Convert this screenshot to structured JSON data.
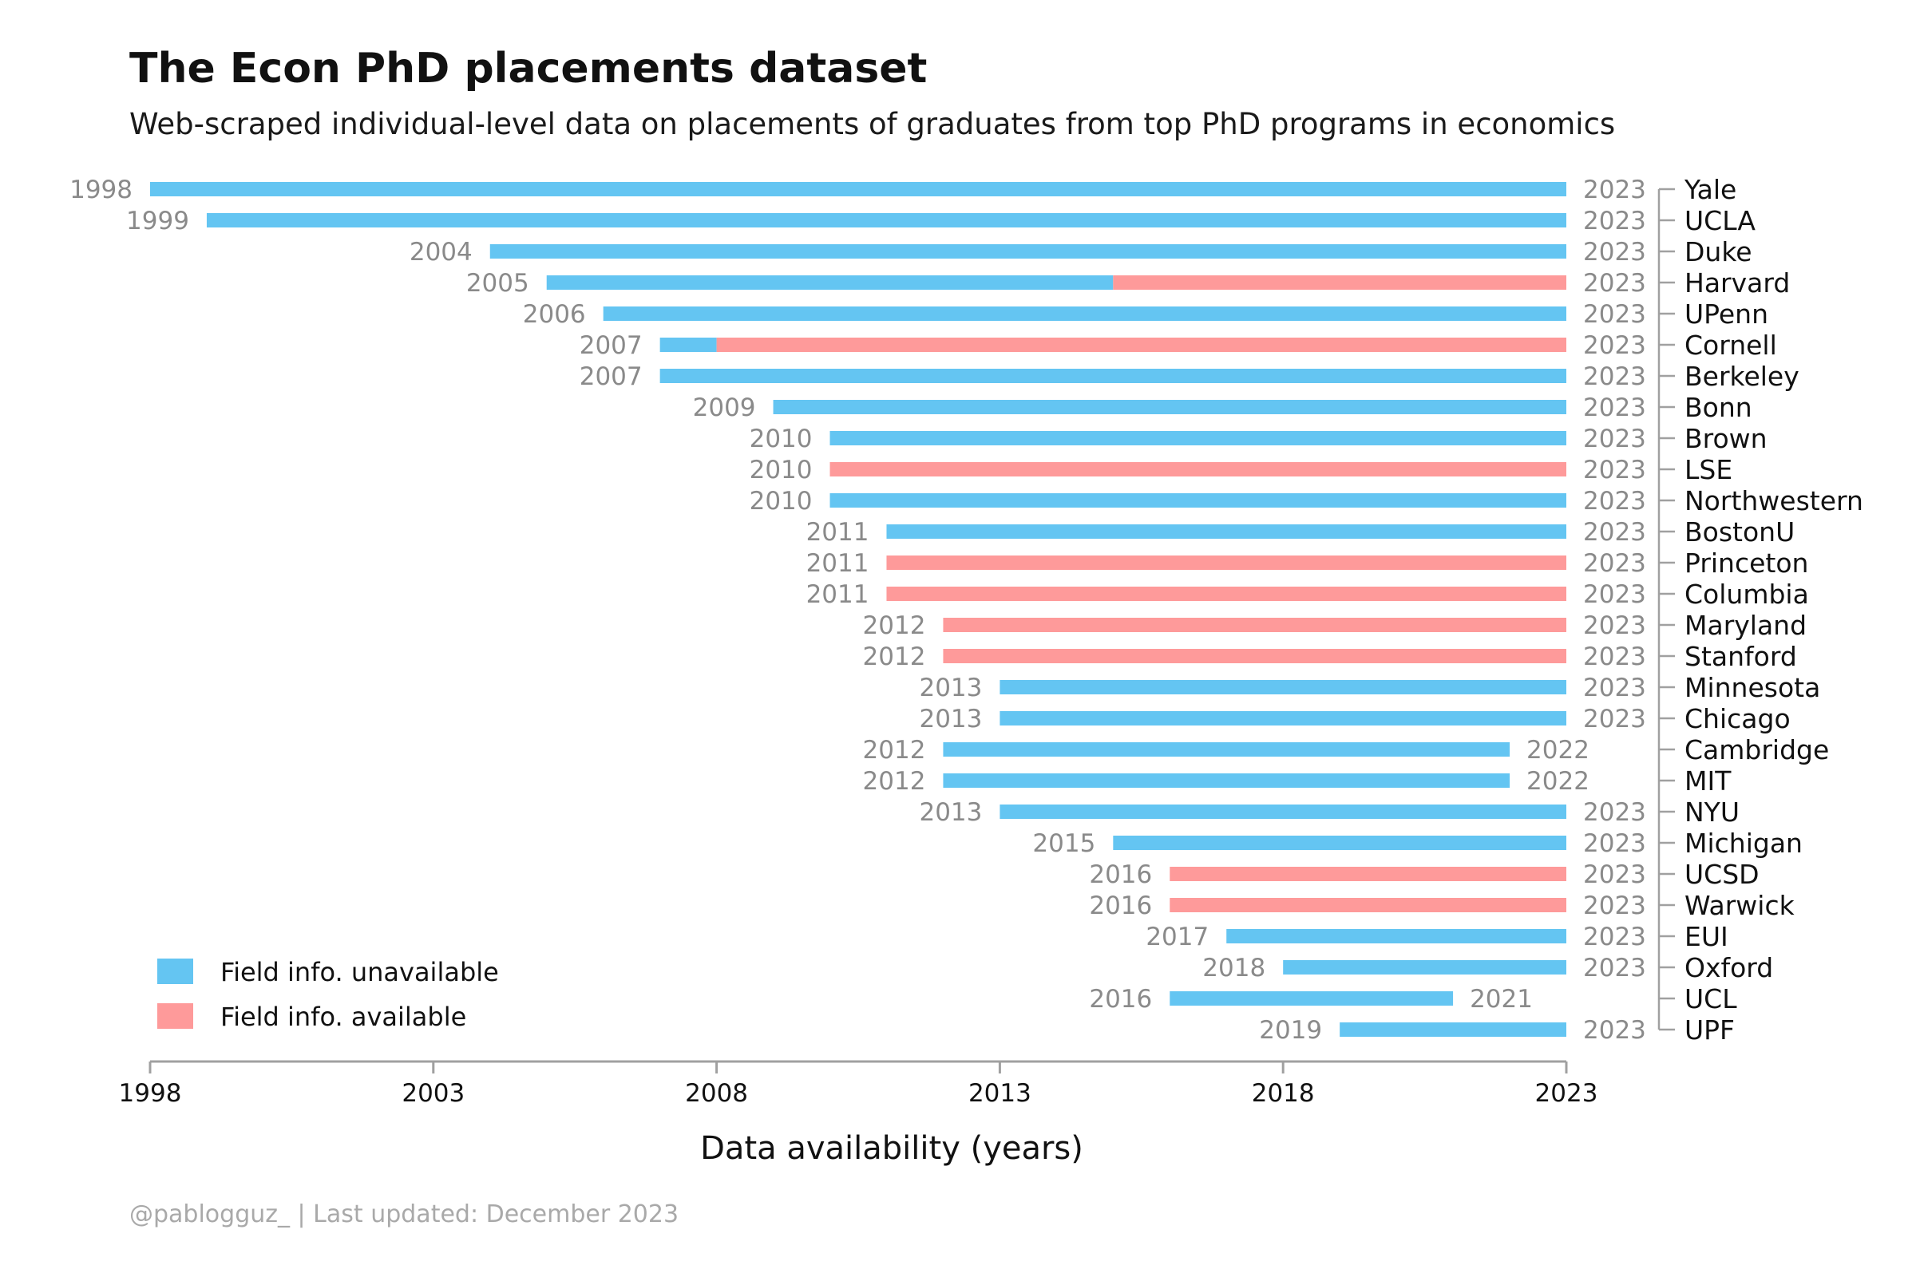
{
  "header": {
    "title": "The Econ PhD placements dataset",
    "subtitle": "Web-scraped individual-level data on placements of graduates from top PhD programs in economics"
  },
  "caption": "@pablogguz_  |  Last updated: December 2023",
  "colors": {
    "unavailable": "#64C5F2",
    "available": "#FE9A9A",
    "axis": "#a0a0a0",
    "year_label": "#8a8a8a"
  },
  "legend": {
    "placement": "bottom-left",
    "items": [
      {
        "key": "unavailable",
        "label": "Field info. unavailable"
      },
      {
        "key": "available",
        "label": "Field info. available"
      }
    ]
  },
  "chart_data": {
    "type": "bar",
    "orientation": "horizontal-range",
    "title": "The Econ PhD placements dataset",
    "subtitle": "Web-scraped individual-level data on placements of graduates from top PhD programs in economics",
    "xlabel": "Data availability (years)",
    "ylabel": "",
    "xlim": [
      1998,
      2023
    ],
    "xticks": [
      1998,
      2003,
      2008,
      2013,
      2018,
      2023
    ],
    "grid": false,
    "legend_position": "bottom-left",
    "series": [
      {
        "name": "Field info. unavailable",
        "color": "#64C5F2"
      },
      {
        "name": "Field info. available",
        "color": "#FE9A9A"
      }
    ],
    "rows": [
      {
        "program": "Yale",
        "start": 1998,
        "end": 2023,
        "segments": [
          {
            "from": 1998,
            "to": 2023,
            "field": "unavailable"
          }
        ]
      },
      {
        "program": "UCLA",
        "start": 1999,
        "end": 2023,
        "segments": [
          {
            "from": 1999,
            "to": 2023,
            "field": "unavailable"
          }
        ]
      },
      {
        "program": "Duke",
        "start": 2004,
        "end": 2023,
        "segments": [
          {
            "from": 2004,
            "to": 2023,
            "field": "unavailable"
          }
        ]
      },
      {
        "program": "Harvard",
        "start": 2005,
        "end": 2023,
        "segments": [
          {
            "from": 2005,
            "to": 2015,
            "field": "unavailable"
          },
          {
            "from": 2015,
            "to": 2023,
            "field": "available"
          }
        ]
      },
      {
        "program": "UPenn",
        "start": 2006,
        "end": 2023,
        "segments": [
          {
            "from": 2006,
            "to": 2023,
            "field": "unavailable"
          }
        ]
      },
      {
        "program": "Cornell",
        "start": 2007,
        "end": 2023,
        "segments": [
          {
            "from": 2007,
            "to": 2008,
            "field": "unavailable"
          },
          {
            "from": 2008,
            "to": 2023,
            "field": "available"
          }
        ]
      },
      {
        "program": "Berkeley",
        "start": 2007,
        "end": 2023,
        "segments": [
          {
            "from": 2007,
            "to": 2023,
            "field": "unavailable"
          }
        ]
      },
      {
        "program": "Bonn",
        "start": 2009,
        "end": 2023,
        "segments": [
          {
            "from": 2009,
            "to": 2023,
            "field": "unavailable"
          }
        ]
      },
      {
        "program": "Brown",
        "start": 2010,
        "end": 2023,
        "segments": [
          {
            "from": 2010,
            "to": 2023,
            "field": "unavailable"
          }
        ]
      },
      {
        "program": "LSE",
        "start": 2010,
        "end": 2023,
        "segments": [
          {
            "from": 2010,
            "to": 2023,
            "field": "available"
          }
        ]
      },
      {
        "program": "Northwestern",
        "start": 2010,
        "end": 2023,
        "segments": [
          {
            "from": 2010,
            "to": 2023,
            "field": "unavailable"
          }
        ]
      },
      {
        "program": "BostonU",
        "start": 2011,
        "end": 2023,
        "segments": [
          {
            "from": 2011,
            "to": 2023,
            "field": "unavailable"
          }
        ]
      },
      {
        "program": "Princeton",
        "start": 2011,
        "end": 2023,
        "segments": [
          {
            "from": 2011,
            "to": 2023,
            "field": "available"
          }
        ]
      },
      {
        "program": "Columbia",
        "start": 2011,
        "end": 2023,
        "segments": [
          {
            "from": 2011,
            "to": 2023,
            "field": "available"
          }
        ]
      },
      {
        "program": "Maryland",
        "start": 2012,
        "end": 2023,
        "segments": [
          {
            "from": 2012,
            "to": 2023,
            "field": "available"
          }
        ]
      },
      {
        "program": "Stanford",
        "start": 2012,
        "end": 2023,
        "segments": [
          {
            "from": 2012,
            "to": 2023,
            "field": "available"
          }
        ]
      },
      {
        "program": "Minnesota",
        "start": 2013,
        "end": 2023,
        "segments": [
          {
            "from": 2013,
            "to": 2023,
            "field": "unavailable"
          }
        ]
      },
      {
        "program": "Chicago",
        "start": 2013,
        "end": 2023,
        "segments": [
          {
            "from": 2013,
            "to": 2023,
            "field": "unavailable"
          }
        ]
      },
      {
        "program": "Cambridge",
        "start": 2012,
        "end": 2022,
        "segments": [
          {
            "from": 2012,
            "to": 2022,
            "field": "unavailable"
          }
        ]
      },
      {
        "program": "MIT",
        "start": 2012,
        "end": 2022,
        "segments": [
          {
            "from": 2012,
            "to": 2022,
            "field": "unavailable"
          }
        ]
      },
      {
        "program": "NYU",
        "start": 2013,
        "end": 2023,
        "segments": [
          {
            "from": 2013,
            "to": 2023,
            "field": "unavailable"
          }
        ]
      },
      {
        "program": "Michigan",
        "start": 2015,
        "end": 2023,
        "segments": [
          {
            "from": 2015,
            "to": 2023,
            "field": "unavailable"
          }
        ]
      },
      {
        "program": "UCSD",
        "start": 2016,
        "end": 2023,
        "segments": [
          {
            "from": 2016,
            "to": 2023,
            "field": "available"
          }
        ]
      },
      {
        "program": "Warwick",
        "start": 2016,
        "end": 2023,
        "segments": [
          {
            "from": 2016,
            "to": 2023,
            "field": "available"
          }
        ]
      },
      {
        "program": "EUI",
        "start": 2017,
        "end": 2023,
        "segments": [
          {
            "from": 2017,
            "to": 2023,
            "field": "unavailable"
          }
        ]
      },
      {
        "program": "Oxford",
        "start": 2018,
        "end": 2023,
        "segments": [
          {
            "from": 2018,
            "to": 2023,
            "field": "unavailable"
          }
        ]
      },
      {
        "program": "UCL",
        "start": 2016,
        "end": 2021,
        "segments": [
          {
            "from": 2016,
            "to": 2021,
            "field": "unavailable"
          }
        ]
      },
      {
        "program": "UPF",
        "start": 2019,
        "end": 2023,
        "segments": [
          {
            "from": 2019,
            "to": 2023,
            "field": "unavailable"
          }
        ]
      }
    ]
  }
}
